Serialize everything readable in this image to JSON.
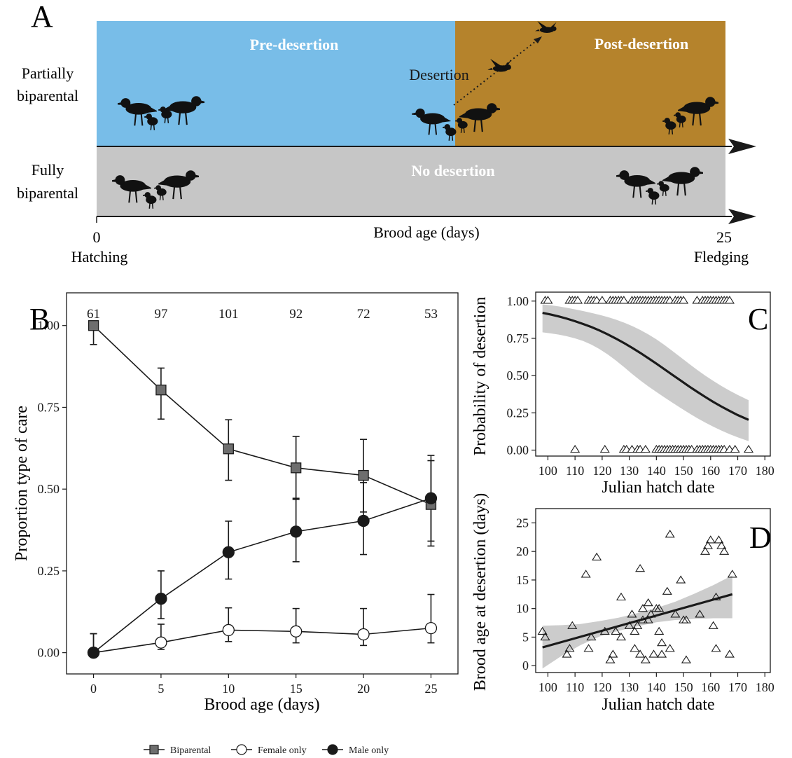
{
  "panel_letters": {
    "a": "A",
    "b": "B",
    "c": "C",
    "d": "D"
  },
  "colors": {
    "pre": "#78bde8",
    "post": "#b5832c",
    "none": "#c6c6c6",
    "ink": "#1a1a1a",
    "band": "#cccccc",
    "sq": "#6e6e6e"
  },
  "panel_a": {
    "row_partial": [
      "Partially",
      "biparental"
    ],
    "row_full": [
      "Fully",
      "biparental"
    ],
    "pre_label": "Pre-desertion",
    "post_label": "Post-desertion",
    "none_label": "No desertion",
    "desertion_label": "Desertion",
    "axis_title": "Brood age (days)",
    "tick_start": "0",
    "tick_end": "25",
    "start_label": "Hatching",
    "end_label": "Fledging",
    "icons": [
      "plover-adult-icon",
      "plover-chick-icon",
      "flying-plover-icon"
    ]
  },
  "chart_data": [
    {
      "type": "line",
      "panel": "B",
      "xlabel": "Brood age (days)",
      "ylabel": "Proportion type of care",
      "xlim": [
        -2,
        27
      ],
      "ylim": [
        -0.065,
        1.1
      ],
      "xticks": [
        0,
        5,
        10,
        15,
        20,
        25
      ],
      "yticks": [
        0,
        0.25,
        0.5,
        0.75,
        1.0
      ],
      "ytick_labels": [
        "0.00",
        "0.25",
        "0.50",
        "0.75",
        "1.00"
      ],
      "x": [
        0,
        5,
        10,
        15,
        20,
        25
      ],
      "sample_sizes": [
        "61",
        "97",
        "101",
        "92",
        "72",
        "53"
      ],
      "legend_position": "bottom",
      "series": [
        {
          "name": "Biparental",
          "marker": "square",
          "values": [
            1.0,
            0.803,
            0.623,
            0.565,
            0.542,
            0.453
          ],
          "lower": [
            0.942,
            0.714,
            0.527,
            0.468,
            0.43,
            0.326
          ],
          "upper": [
            1.0,
            0.87,
            0.712,
            0.661,
            0.652,
            0.587
          ]
        },
        {
          "name": "Female only",
          "marker": "open-circle",
          "values": [
            0.0,
            0.031,
            0.069,
            0.065,
            0.056,
            0.075
          ],
          "lower": [
            0.0,
            0.01,
            0.034,
            0.03,
            0.022,
            0.03
          ],
          "upper": [
            0.058,
            0.087,
            0.137,
            0.135,
            0.135,
            0.178
          ]
        },
        {
          "name": "Male only",
          "marker": "filled-circle",
          "values": [
            0.0,
            0.165,
            0.307,
            0.37,
            0.403,
            0.472
          ],
          "lower": [
            0.0,
            0.104,
            0.225,
            0.278,
            0.3,
            0.341
          ],
          "upper": [
            0.058,
            0.25,
            0.402,
            0.472,
            0.52,
            0.603
          ]
        }
      ]
    },
    {
      "type": "scatter",
      "panel": "C",
      "xlabel": "Julian hatch date",
      "ylabel": "Probability of desertion",
      "xlim": [
        95.5,
        182
      ],
      "ylim": [
        -0.04,
        1.06
      ],
      "xticks": [
        100,
        110,
        120,
        130,
        140,
        150,
        160,
        170,
        180
      ],
      "yticks": [
        0,
        0.25,
        0.5,
        0.75,
        1.0
      ],
      "ytick_labels": [
        "0.00",
        "0.25",
        "0.50",
        "0.75",
        "1.00"
      ],
      "marker": "open-triangle",
      "points_deserted": [
        99,
        100,
        108,
        109,
        110,
        111,
        115,
        116,
        117,
        118,
        120,
        123,
        124,
        125,
        126,
        127,
        128,
        131,
        132,
        133,
        134,
        135,
        136,
        137,
        138,
        139,
        140,
        141,
        142,
        143,
        144,
        145,
        147,
        148,
        149,
        150,
        155,
        157,
        158,
        159,
        160,
        161,
        162,
        163,
        164,
        165,
        166,
        167
      ],
      "points_not_deserted": [
        110,
        121,
        128,
        129,
        131,
        133,
        134,
        136,
        140,
        141,
        142,
        143,
        144,
        145,
        146,
        147,
        148,
        149,
        150,
        151,
        152,
        153,
        155,
        156,
        157,
        158,
        159,
        160,
        161,
        162,
        163,
        164,
        165,
        167,
        169,
        174
      ],
      "fit_x": [
        98,
        101,
        104,
        107,
        110,
        113,
        116,
        119,
        122,
        125,
        128,
        131,
        134,
        137,
        140,
        143,
        146,
        149,
        152,
        155,
        158,
        161,
        164,
        167,
        170,
        174
      ],
      "fit_y": [
        0.921,
        0.91,
        0.897,
        0.882,
        0.865,
        0.846,
        0.826,
        0.803,
        0.777,
        0.749,
        0.719,
        0.687,
        0.653,
        0.617,
        0.58,
        0.542,
        0.504,
        0.466,
        0.428,
        0.392,
        0.357,
        0.323,
        0.292,
        0.263,
        0.235,
        0.203
      ],
      "fit_lower": [
        0.79,
        0.783,
        0.775,
        0.764,
        0.75,
        0.732,
        0.708,
        0.678,
        0.643,
        0.602,
        0.558,
        0.512,
        0.468,
        0.428,
        0.39,
        0.353,
        0.317,
        0.282,
        0.248,
        0.215,
        0.185,
        0.157,
        0.131,
        0.107,
        0.086,
        0.06
      ],
      "fit_upper": [
        0.978,
        0.972,
        0.964,
        0.955,
        0.944,
        0.933,
        0.921,
        0.908,
        0.893,
        0.876,
        0.856,
        0.833,
        0.807,
        0.777,
        0.743,
        0.705,
        0.664,
        0.622,
        0.58,
        0.539,
        0.5,
        0.464,
        0.43,
        0.399,
        0.37,
        0.335
      ]
    },
    {
      "type": "scatter",
      "panel": "D",
      "xlabel": "Julian hatch date",
      "ylabel": "Brood age at desertion (days)",
      "xlim": [
        95.5,
        182
      ],
      "ylim": [
        -1.2,
        27.5
      ],
      "xticks": [
        100,
        110,
        120,
        130,
        140,
        150,
        160,
        170,
        180
      ],
      "yticks": [
        0,
        5,
        10,
        15,
        20,
        25
      ],
      "marker": "open-triangle",
      "points": [
        [
          98,
          6
        ],
        [
          99,
          5
        ],
        [
          107,
          2
        ],
        [
          108,
          3
        ],
        [
          109,
          7
        ],
        [
          114,
          16
        ],
        [
          115,
          3
        ],
        [
          116,
          5
        ],
        [
          118,
          19
        ],
        [
          121,
          6
        ],
        [
          123,
          1
        ],
        [
          124,
          2
        ],
        [
          125,
          6
        ],
        [
          127,
          5
        ],
        [
          127,
          12
        ],
        [
          130,
          7
        ],
        [
          131,
          9
        ],
        [
          132,
          3
        ],
        [
          132,
          6
        ],
        [
          133,
          7
        ],
        [
          134,
          17
        ],
        [
          134,
          2
        ],
        [
          135,
          10
        ],
        [
          135,
          8
        ],
        [
          136,
          1
        ],
        [
          137,
          11
        ],
        [
          137,
          8
        ],
        [
          138,
          9
        ],
        [
          139,
          2
        ],
        [
          140,
          10
        ],
        [
          141,
          6
        ],
        [
          141,
          10
        ],
        [
          142,
          4
        ],
        [
          142,
          2
        ],
        [
          144,
          13
        ],
        [
          145,
          23
        ],
        [
          145,
          3
        ],
        [
          147,
          9
        ],
        [
          149,
          15
        ],
        [
          150,
          8
        ],
        [
          151,
          8
        ],
        [
          151,
          1
        ],
        [
          156,
          9
        ],
        [
          158,
          20
        ],
        [
          159,
          21
        ],
        [
          160,
          22
        ],
        [
          161,
          7
        ],
        [
          162,
          3
        ],
        [
          162,
          12
        ],
        [
          163,
          22
        ],
        [
          164,
          21
        ],
        [
          165,
          20
        ],
        [
          167,
          2
        ],
        [
          168,
          16
        ]
      ],
      "fit_x": [
        98,
        168
      ],
      "fit_y": [
        3.2,
        12.5
      ],
      "band_x": [
        98,
        105,
        112,
        119,
        126,
        133,
        140,
        147,
        154,
        161,
        168
      ],
      "band_lower": [
        -0.5,
        1.7,
        3.6,
        5.1,
        6.1,
        6.9,
        7.6,
        8.0,
        8.2,
        8.3,
        8.3
      ],
      "band_upper": [
        7.0,
        7.1,
        7.3,
        7.8,
        8.4,
        9.2,
        10.1,
        11.2,
        12.6,
        14.1,
        15.8
      ]
    }
  ]
}
